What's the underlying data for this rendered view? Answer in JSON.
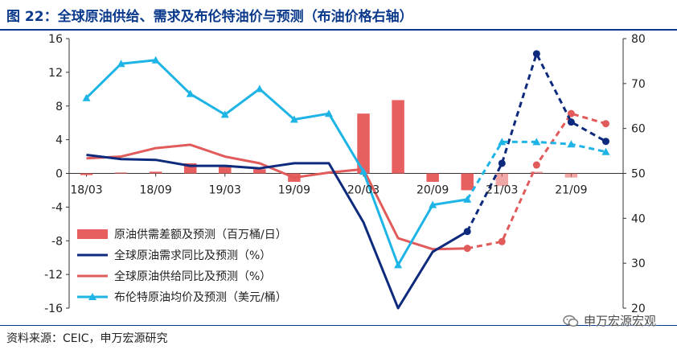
{
  "title": "图 22：全球原油供给、需求及布伦特油价与预测（布油价格右轴）",
  "source": "资料来源：CEIC，申万宏源研究",
  "watermark": "申万宏源宏观",
  "colors": {
    "title": "#0b3a8c",
    "balance_bar": "#e85f5f",
    "demand": "#0d2a7c",
    "supply": "#e25b5b",
    "brent": "#1eb4e6"
  },
  "chart_data": {
    "type": "bar+line",
    "x": [
      "18/03",
      "18/06",
      "18/09",
      "18/12",
      "19/03",
      "19/06",
      "19/09",
      "19/12",
      "20/03",
      "20/06",
      "20/09",
      "20/12",
      "21/03",
      "21/06",
      "21/09",
      "21/12"
    ],
    "x_tick_labels": [
      "18/03",
      "18/09",
      "19/03",
      "19/09",
      "20/03",
      "20/09",
      "21/03",
      "21/09"
    ],
    "left_axis": {
      "ylim": [
        -16,
        16
      ],
      "ticks": [
        -16,
        -12,
        -8,
        -4,
        0,
        4,
        8,
        12,
        16
      ]
    },
    "right_axis": {
      "ylim": [
        20,
        80
      ],
      "ticks": [
        20,
        30,
        40,
        50,
        60,
        70,
        80
      ]
    },
    "series": [
      {
        "name": "原油供需差额及预测（百万桶/日）",
        "type": "bar",
        "axis": "left",
        "values": [
          -0.2,
          0.1,
          0.2,
          1.2,
          1.0,
          0.5,
          -1.0,
          0.0,
          7.1,
          8.7,
          -1.0,
          -2.0,
          -1.5,
          0.2,
          -0.5,
          0
        ],
        "forecast_from_index": 12
      },
      {
        "name": "全球原油需求同比及预测（%）",
        "type": "line",
        "axis": "left",
        "values": [
          2.2,
          1.7,
          1.6,
          0.9,
          0.9,
          0.6,
          1.2,
          1.2,
          -5.8,
          -16.0,
          -9.3,
          -6.9,
          1.2,
          14.2,
          6.1,
          3.8
        ],
        "forecast_from_index": 11
      },
      {
        "name": "全球原油供给同比及预测（%）",
        "type": "line",
        "axis": "left",
        "values": [
          1.8,
          2.0,
          3.0,
          3.4,
          2.0,
          1.2,
          -0.5,
          0.1,
          0.5,
          -7.7,
          -9.0,
          -8.9,
          -8.1,
          1.0,
          7.1,
          5.9
        ],
        "forecast_from_index": 11
      },
      {
        "name": "布伦特原油均价及预测（美元/桶）",
        "type": "line",
        "axis": "right",
        "values": [
          66.8,
          74.4,
          75.2,
          67.7,
          63.1,
          68.8,
          62.0,
          63.3,
          50.4,
          29.6,
          43.0,
          44.2,
          57.0,
          57.0,
          56.5,
          54.8
        ],
        "forecast_from_index": 11
      }
    ]
  }
}
